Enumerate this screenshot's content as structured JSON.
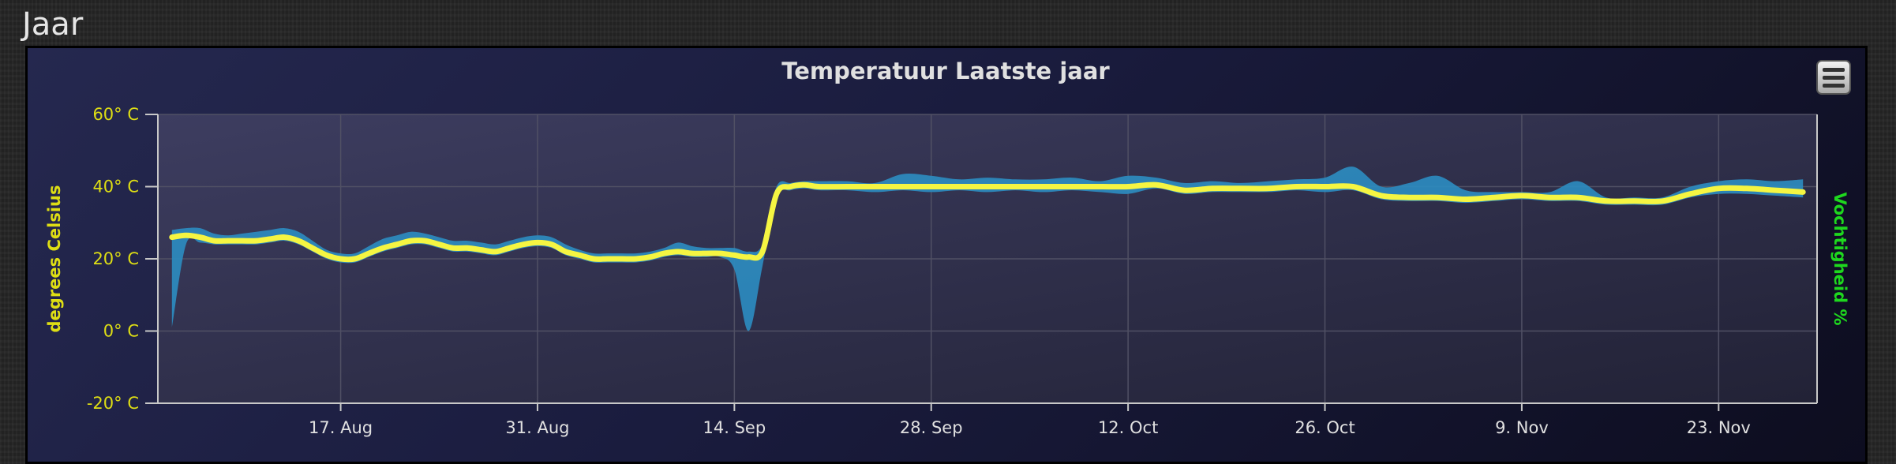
{
  "section_title": "Jaar",
  "menu": {
    "icon": "hamburger-menu-icon"
  },
  "colors": {
    "temperature_line": "#f5f542",
    "humidity_area": "#2c8bbf",
    "left_axis": "#dede14",
    "right_axis": "#1ed81e",
    "x_axis_text": "#e0e0e0"
  },
  "chart_data": {
    "type": "line",
    "title": "Temperatuur Laatste jaar",
    "ylabel": "degrees Celsius",
    "ylabel_right": "Vochtigheid %",
    "ylim": [
      -20,
      60
    ],
    "yticks": [
      60,
      40,
      20,
      0,
      -20
    ],
    "ytick_labels": [
      "60° C",
      "40° C",
      "20° C",
      "0° C",
      "-20° C"
    ],
    "xlim": [
      "2015-08-04",
      "2015-11-30"
    ],
    "xticks": [
      "2015-08-17",
      "2015-08-31",
      "2015-09-14",
      "2015-09-28",
      "2015-10-12",
      "2015-10-26",
      "2015-11-09",
      "2015-11-23"
    ],
    "xtick_labels": [
      "17. Aug",
      "31. Aug",
      "14. Sep",
      "28. Sep",
      "12. Oct",
      "26. Oct",
      "9. Nov",
      "23. Nov"
    ],
    "grid": true,
    "series": [
      {
        "type": "line",
        "x": [
          "2015-08-05",
          "2015-08-06",
          "2015-08-07",
          "2015-08-08",
          "2015-08-09",
          "2015-08-10",
          "2015-08-11",
          "2015-08-12",
          "2015-08-13",
          "2015-08-14",
          "2015-08-15",
          "2015-08-16",
          "2015-08-17",
          "2015-08-18",
          "2015-08-19",
          "2015-08-20",
          "2015-08-21",
          "2015-08-22",
          "2015-08-23",
          "2015-08-24",
          "2015-08-25",
          "2015-08-26",
          "2015-08-27",
          "2015-08-28",
          "2015-08-29",
          "2015-08-30",
          "2015-08-31",
          "2015-09-01",
          "2015-09-02",
          "2015-09-03",
          "2015-09-04",
          "2015-09-05",
          "2015-09-06",
          "2015-09-07",
          "2015-09-08",
          "2015-09-09",
          "2015-09-10",
          "2015-09-11",
          "2015-09-12",
          "2015-09-13",
          "2015-09-14",
          "2015-09-15",
          "2015-09-16",
          "2015-09-17",
          "2015-09-18",
          "2015-09-19",
          "2015-09-20",
          "2015-09-22",
          "2015-09-24",
          "2015-09-26",
          "2015-09-28",
          "2015-09-30",
          "2015-10-02",
          "2015-10-04",
          "2015-10-06",
          "2015-10-08",
          "2015-10-10",
          "2015-10-12",
          "2015-10-14",
          "2015-10-16",
          "2015-10-18",
          "2015-10-20",
          "2015-10-22",
          "2015-10-24",
          "2015-10-26",
          "2015-10-28",
          "2015-10-30",
          "2015-11-01",
          "2015-11-03",
          "2015-11-05",
          "2015-11-07",
          "2015-11-09",
          "2015-11-11",
          "2015-11-13",
          "2015-11-15",
          "2015-11-17",
          "2015-11-19",
          "2015-11-21",
          "2015-11-23",
          "2015-11-25",
          "2015-11-27",
          "2015-11-29"
        ],
        "y": [
          26,
          26.5,
          26,
          25,
          25,
          25,
          25,
          25.5,
          26,
          25,
          23,
          21,
          20,
          20,
          21.5,
          23,
          24,
          25,
          25,
          24,
          23,
          23,
          22.5,
          22,
          23,
          24,
          24.5,
          24,
          22,
          21,
          20,
          20,
          20,
          20,
          20.5,
          21.5,
          22,
          21.5,
          21.5,
          21.5,
          21,
          20.5,
          22,
          38,
          40,
          40.5,
          40,
          40,
          40,
          40,
          40,
          40,
          40,
          40,
          40,
          40,
          40,
          40,
          40.5,
          39,
          39.5,
          39.5,
          39.5,
          40,
          40,
          40,
          37.5,
          37,
          37,
          36.5,
          37,
          37.5,
          37,
          37,
          36,
          36,
          36,
          38,
          39.5,
          39.5,
          39,
          38.5
        ]
      },
      {
        "type": "area",
        "x": [
          "2015-08-05",
          "2015-08-06",
          "2015-08-07",
          "2015-08-08",
          "2015-08-09",
          "2015-08-10",
          "2015-08-11",
          "2015-08-12",
          "2015-08-13",
          "2015-08-14",
          "2015-08-15",
          "2015-08-16",
          "2015-08-17",
          "2015-08-18",
          "2015-08-19",
          "2015-08-20",
          "2015-08-21",
          "2015-08-22",
          "2015-08-23",
          "2015-08-24",
          "2015-08-25",
          "2015-08-26",
          "2015-08-27",
          "2015-08-28",
          "2015-08-29",
          "2015-08-30",
          "2015-08-31",
          "2015-09-01",
          "2015-09-02",
          "2015-09-03",
          "2015-09-04",
          "2015-09-05",
          "2015-09-06",
          "2015-09-07",
          "2015-09-08",
          "2015-09-09",
          "2015-09-10",
          "2015-09-11",
          "2015-09-12",
          "2015-09-13",
          "2015-09-14",
          "2015-09-15",
          "2015-09-16",
          "2015-09-17",
          "2015-09-18",
          "2015-09-19",
          "2015-09-20",
          "2015-09-22",
          "2015-09-24",
          "2015-09-26",
          "2015-09-28",
          "2015-09-30",
          "2015-10-02",
          "2015-10-04",
          "2015-10-06",
          "2015-10-08",
          "2015-10-10",
          "2015-10-12",
          "2015-10-14",
          "2015-10-16",
          "2015-10-18",
          "2015-10-20",
          "2015-10-22",
          "2015-10-24",
          "2015-10-26",
          "2015-10-28",
          "2015-10-30",
          "2015-11-01",
          "2015-11-03",
          "2015-11-05",
          "2015-11-07",
          "2015-11-09",
          "2015-11-11",
          "2015-11-13",
          "2015-11-15",
          "2015-11-17",
          "2015-11-19",
          "2015-11-21",
          "2015-11-23",
          "2015-11-25",
          "2015-11-27",
          "2015-11-29"
        ],
        "low": [
          1,
          24,
          24.5,
          24,
          24,
          24,
          24,
          24.5,
          25,
          24,
          22,
          20,
          19,
          19,
          20.5,
          22,
          23,
          24,
          24,
          23,
          22,
          22,
          21.5,
          21,
          22,
          23,
          23.5,
          23,
          21,
          20,
          19,
          19,
          19,
          19,
          19.5,
          20.5,
          21,
          20.5,
          20.5,
          20.5,
          17,
          0,
          18,
          37,
          39,
          39.5,
          39,
          39,
          38.5,
          39,
          38.5,
          39,
          38.5,
          39,
          38.5,
          39,
          38.5,
          38,
          39.5,
          38,
          38.5,
          38.5,
          38.5,
          39,
          38.5,
          39,
          36.5,
          36,
          36,
          35.5,
          36,
          36.5,
          36,
          36,
          35,
          35,
          35,
          37,
          38,
          38,
          37.5,
          37
        ],
        "high": [
          28,
          28.5,
          28.5,
          27,
          26.5,
          27,
          27.5,
          28,
          28.5,
          27.5,
          25,
          22.5,
          21.5,
          21.5,
          23.5,
          25.5,
          26.5,
          27.5,
          27,
          26,
          25,
          25,
          24.5,
          24,
          25,
          26,
          26.5,
          26,
          24,
          22.5,
          21.5,
          21.5,
          21.5,
          21.5,
          22,
          23,
          24.5,
          23.5,
          23,
          23,
          23,
          22,
          24,
          40,
          41,
          41.5,
          41.5,
          41.5,
          41,
          43.5,
          43,
          42,
          42.5,
          42,
          42,
          42.5,
          41.5,
          43,
          42.5,
          41,
          41.5,
          41,
          41.5,
          42,
          42.5,
          45.5,
          40,
          41,
          43,
          39,
          38.5,
          38.5,
          38.5,
          41.5,
          37,
          37,
          37,
          40,
          41.5,
          42,
          41.5,
          42
        ]
      }
    ]
  }
}
